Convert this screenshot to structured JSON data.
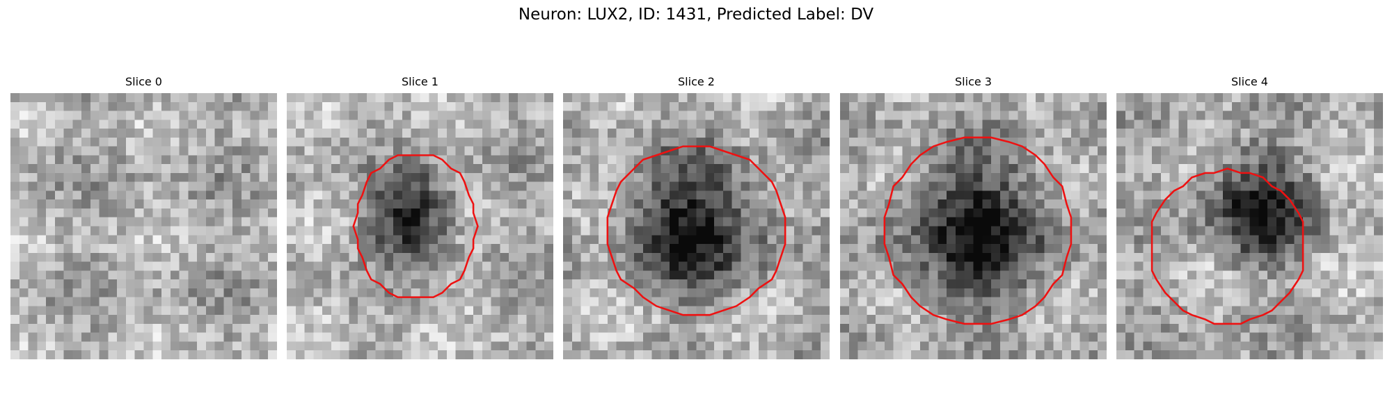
{
  "title": "Neuron: LUX2, ID: 1431, Predicted Label: DV",
  "panels": [
    {
      "title": "Slice 0"
    },
    {
      "title": "Slice 1"
    },
    {
      "title": "Slice 2"
    },
    {
      "title": "Slice 3"
    },
    {
      "title": "Slice 4"
    }
  ]
}
